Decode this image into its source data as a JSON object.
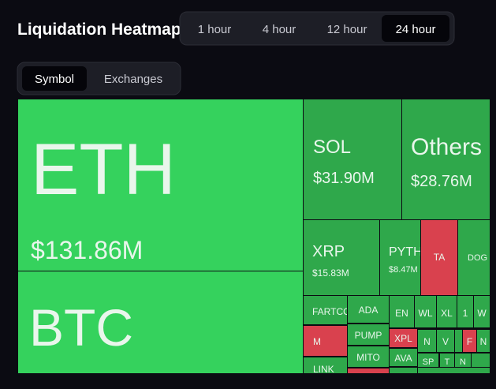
{
  "header": {
    "title": "Liquidation Heatmap",
    "timeframes": [
      "1 hour",
      "4 hour",
      "12 hour",
      "24 hour"
    ],
    "active_timeframe": 3,
    "views": [
      "Symbol",
      "Exchanges"
    ],
    "active_view": 0
  },
  "heatmap": {
    "tiles": [
      {
        "label": "ETH",
        "value": "$131.86M",
        "color": "#35d25d"
      },
      {
        "label": "BTC",
        "color": "#35d25d"
      },
      {
        "label": "SOL",
        "value": "$31.90M",
        "color": "#2fa84b"
      },
      {
        "label": "Others",
        "value": "$28.76M",
        "color": "#2fa84b"
      },
      {
        "label": "XRP",
        "value": "$15.83M",
        "color": "#2fa84b"
      },
      {
        "label": "PYTH",
        "value": "$8.47M",
        "color": "#2fa84b"
      },
      {
        "label": "TA",
        "color": "#d9414e"
      },
      {
        "label": "DOG",
        "color": "#2fa84b"
      },
      {
        "label": "FARTCO",
        "color": "#2fa84b"
      },
      {
        "label": "ADA",
        "color": "#2fa84b"
      },
      {
        "label": "EN",
        "color": "#2fa84b"
      },
      {
        "label": "WL",
        "color": "#2fa84b"
      },
      {
        "label": "XL",
        "color": "#2fa84b"
      },
      {
        "label": "1",
        "color": "#2fa84b"
      },
      {
        "label": "W",
        "color": "#2fa84b"
      },
      {
        "label": "M",
        "color": "#d9414e"
      },
      {
        "label": "LINK",
        "color": "#2fa84b"
      },
      {
        "label": "PUMP",
        "color": "#2fa84b"
      },
      {
        "label": "MITO",
        "color": "#2fa84b"
      },
      {
        "label": "XPL",
        "color": "#d9414e"
      },
      {
        "label": "AVA",
        "color": "#2fa84b"
      },
      {
        "label": "N",
        "color": "#2fa84b"
      },
      {
        "label": "V",
        "color": "#2fa84b"
      },
      {
        "label": "F",
        "color": "#d9414e"
      },
      {
        "label": "N",
        "color": "#2fa84b"
      },
      {
        "label": "SP",
        "color": "#2fa84b"
      },
      {
        "label": "T",
        "color": "#2fa84b"
      },
      {
        "label": "N",
        "color": "#2fa84b"
      }
    ]
  }
}
